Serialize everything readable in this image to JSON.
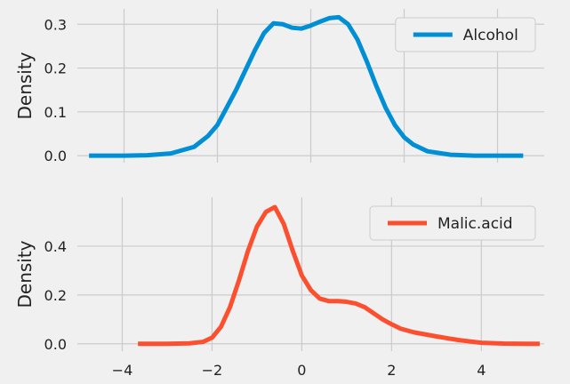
{
  "chart_data": [
    {
      "type": "line",
      "ylabel": "Density",
      "xlim": [
        -5.0,
        5.0
      ],
      "ylim": [
        -0.016,
        0.335
      ],
      "xticks": [
        -4,
        -2,
        0,
        2,
        4
      ],
      "yticks": [
        0.0,
        0.1,
        0.2,
        0.3
      ],
      "ytick_labels": [
        "0.0",
        "0.1",
        "0.2",
        "0.3"
      ],
      "show_xtick_labels": false,
      "grid": true,
      "legend_position": "top-right",
      "series": [
        {
          "name": "Alcohol",
          "color": "#008fd5",
          "x": [
            -4.75,
            -4.0,
            -3.5,
            -3.0,
            -2.5,
            -2.2,
            -2.0,
            -1.8,
            -1.6,
            -1.4,
            -1.2,
            -1.0,
            -0.8,
            -0.6,
            -0.4,
            -0.2,
            0.0,
            0.2,
            0.4,
            0.6,
            0.8,
            1.0,
            1.2,
            1.4,
            1.6,
            1.8,
            2.0,
            2.2,
            2.5,
            3.0,
            3.5,
            4.0,
            4.55
          ],
          "y": [
            0.0,
            0.0,
            0.001,
            0.005,
            0.02,
            0.045,
            0.07,
            0.11,
            0.15,
            0.195,
            0.24,
            0.28,
            0.302,
            0.3,
            0.292,
            0.29,
            0.297,
            0.306,
            0.314,
            0.316,
            0.3,
            0.265,
            0.215,
            0.16,
            0.11,
            0.07,
            0.042,
            0.025,
            0.01,
            0.002,
            0.0,
            0.0,
            0.0
          ]
        }
      ]
    },
    {
      "type": "line",
      "xlabel": "",
      "ylabel": "Density",
      "xlim": [
        -5.0,
        5.4
      ],
      "ylim": [
        -0.03,
        0.6
      ],
      "xticks": [
        -4,
        -2,
        0,
        2,
        4
      ],
      "xtick_labels": [
        "−4",
        "−2",
        "0",
        "2",
        "4"
      ],
      "yticks": [
        0.0,
        0.2,
        0.4
      ],
      "ytick_labels": [
        "0.0",
        "0.2",
        "0.4"
      ],
      "grid": true,
      "legend_position": "top-right",
      "series": [
        {
          "name": "Malic.acid",
          "color": "#fc4f30",
          "x": [
            -3.65,
            -3.0,
            -2.5,
            -2.2,
            -2.0,
            -1.8,
            -1.6,
            -1.4,
            -1.2,
            -1.0,
            -0.8,
            -0.6,
            -0.4,
            -0.2,
            0.0,
            0.2,
            0.4,
            0.6,
            0.8,
            1.0,
            1.2,
            1.4,
            1.6,
            1.8,
            2.0,
            2.2,
            2.5,
            3.0,
            3.5,
            4.0,
            4.5,
            5.0,
            5.3
          ],
          "y": [
            0.0,
            0.0,
            0.002,
            0.008,
            0.025,
            0.07,
            0.15,
            0.26,
            0.38,
            0.48,
            0.54,
            0.56,
            0.49,
            0.38,
            0.28,
            0.22,
            0.185,
            0.175,
            0.175,
            0.172,
            0.165,
            0.15,
            0.125,
            0.1,
            0.08,
            0.062,
            0.047,
            0.03,
            0.015,
            0.004,
            0.001,
            0.0,
            0.0
          ]
        }
      ]
    }
  ]
}
